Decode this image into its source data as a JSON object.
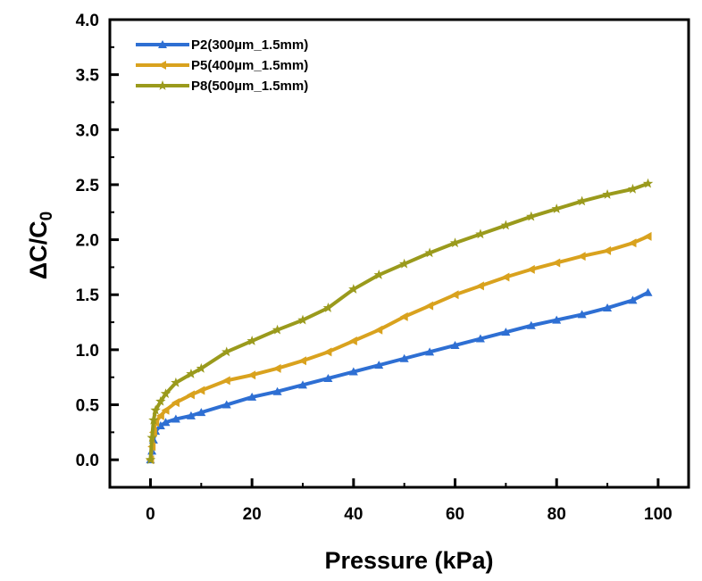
{
  "chart_data": {
    "type": "line",
    "title": "",
    "xlabel": "Pressure (kPa)",
    "ylabel": {
      "main": "ΔC/C",
      "sub": "0"
    },
    "xlim": [
      -8,
      106
    ],
    "ylim": [
      -0.25,
      4.0
    ],
    "xticks": [
      0,
      20,
      40,
      60,
      80,
      100
    ],
    "xtick_labels": [
      "0",
      "20",
      "40",
      "60",
      "80",
      "100"
    ],
    "yticks": [
      0.0,
      0.5,
      1.0,
      1.5,
      2.0,
      2.5,
      3.0,
      3.5,
      4.0
    ],
    "ytick_labels": [
      "0.0",
      "0.5",
      "1.0",
      "1.5",
      "2.0",
      "2.5",
      "3.0",
      "3.5",
      "4.0"
    ],
    "grid": false,
    "legend_position": "top-left",
    "series": [
      {
        "name": "P2(300µm_1.5mm)",
        "color": "#2e6fd3",
        "marker": "triangle",
        "x": [
          0,
          0.3,
          0.6,
          1,
          2,
          3,
          5,
          8,
          10,
          15,
          20,
          25,
          30,
          35,
          40,
          45,
          50,
          55,
          60,
          65,
          70,
          75,
          80,
          85,
          90,
          95,
          98
        ],
        "y": [
          0.0,
          0.08,
          0.18,
          0.26,
          0.31,
          0.34,
          0.37,
          0.4,
          0.43,
          0.5,
          0.57,
          0.62,
          0.68,
          0.74,
          0.8,
          0.86,
          0.92,
          0.98,
          1.04,
          1.1,
          1.16,
          1.22,
          1.27,
          1.32,
          1.38,
          1.45,
          1.52
        ]
      },
      {
        "name": "P5(400µm_1.5mm)",
        "color": "#d9a21e",
        "marker": "left-triangle",
        "x": [
          0,
          0.3,
          0.6,
          1,
          2,
          3,
          5,
          8,
          10,
          15,
          20,
          25,
          30,
          35,
          40,
          45,
          50,
          55,
          60,
          65,
          70,
          75,
          80,
          85,
          90,
          95,
          98
        ],
        "y": [
          0.0,
          0.12,
          0.25,
          0.34,
          0.4,
          0.45,
          0.52,
          0.59,
          0.63,
          0.72,
          0.77,
          0.83,
          0.9,
          0.98,
          1.08,
          1.18,
          1.3,
          1.4,
          1.5,
          1.58,
          1.66,
          1.73,
          1.79,
          1.85,
          1.9,
          1.97,
          2.03
        ]
      },
      {
        "name": "P8(500µm_1.5mm)",
        "color": "#9a9a1c",
        "marker": "star",
        "x": [
          0,
          0.3,
          0.6,
          1,
          2,
          3,
          5,
          8,
          10,
          15,
          20,
          25,
          30,
          35,
          40,
          45,
          50,
          55,
          60,
          65,
          70,
          75,
          80,
          85,
          90,
          95,
          98
        ],
        "y": [
          0.0,
          0.2,
          0.36,
          0.45,
          0.53,
          0.6,
          0.7,
          0.78,
          0.83,
          0.98,
          1.08,
          1.18,
          1.27,
          1.38,
          1.55,
          1.68,
          1.78,
          1.88,
          1.97,
          2.05,
          2.13,
          2.21,
          2.28,
          2.35,
          2.41,
          2.46,
          2.51
        ]
      }
    ]
  }
}
